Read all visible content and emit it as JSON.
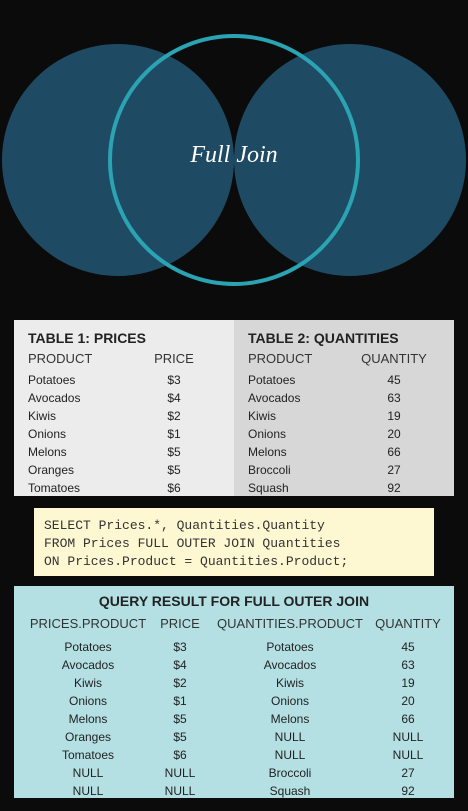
{
  "diagram": {
    "title": "Full Join",
    "colors": {
      "fill": "#1f4a63",
      "stroke": "#2aa3b3"
    }
  },
  "table1": {
    "title": "TABLE 1: PRICES",
    "headers": [
      "PRODUCT",
      "PRICE"
    ],
    "rows": [
      [
        "Potatoes",
        "$3"
      ],
      [
        "Avocados",
        "$4"
      ],
      [
        "Kiwis",
        "$2"
      ],
      [
        "Onions",
        "$1"
      ],
      [
        "Melons",
        "$5"
      ],
      [
        "Oranges",
        "$5"
      ],
      [
        "Tomatoes",
        "$6"
      ]
    ]
  },
  "table2": {
    "title": "TABLE 2: QUANTITIES",
    "headers": [
      "PRODUCT",
      "QUANTITY"
    ],
    "rows": [
      [
        "Potatoes",
        "45"
      ],
      [
        "Avocados",
        "63"
      ],
      [
        "Kiwis",
        "19"
      ],
      [
        "Onions",
        "20"
      ],
      [
        "Melons",
        "66"
      ],
      [
        "Broccoli",
        "27"
      ],
      [
        "Squash",
        "92"
      ]
    ]
  },
  "sql": {
    "lines": [
      "SELECT Prices.*, Quantities.Quantity",
      "FROM Prices FULL OUTER JOIN Quantities",
      "ON Prices.Product = Quantities.Product;"
    ]
  },
  "result": {
    "title": "QUERY RESULT FOR FULL OUTER JOIN",
    "headers": [
      "PRICES.PRODUCT",
      "PRICE",
      "QUANTITIES.PRODUCT",
      "QUANTITY"
    ],
    "rows": [
      [
        "Potatoes",
        "$3",
        "Potatoes",
        "45"
      ],
      [
        "Avocados",
        "$4",
        "Avocados",
        "63"
      ],
      [
        "Kiwis",
        "$2",
        "Kiwis",
        "19"
      ],
      [
        "Onions",
        "$1",
        "Onions",
        "20"
      ],
      [
        "Melons",
        "$5",
        "Melons",
        "66"
      ],
      [
        "Oranges",
        "$5",
        "NULL",
        "NULL"
      ],
      [
        "Tomatoes",
        "$6",
        "NULL",
        "NULL"
      ],
      [
        "NULL",
        "NULL",
        "Broccoli",
        "27"
      ],
      [
        "NULL",
        "NULL",
        "Squash",
        "92"
      ]
    ]
  }
}
